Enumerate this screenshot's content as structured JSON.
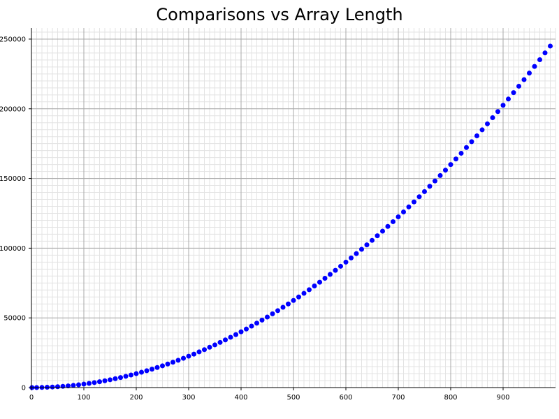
{
  "chart_data": {
    "type": "scatter",
    "title": "Comparisons vs Array Length",
    "xlabel": "",
    "ylabel": "",
    "xlim": [
      0,
      1000
    ],
    "ylim": [
      0,
      258000
    ],
    "x_ticks": [
      0,
      100,
      200,
      300,
      400,
      500,
      600,
      700,
      800,
      900
    ],
    "y_ticks": [
      0,
      50000,
      100000,
      150000,
      200000,
      250000
    ],
    "x_minor_step": 10,
    "y_minor_step": 5000,
    "grid": true,
    "marker_color": "#0000ff",
    "series": [
      {
        "x": [
          1,
          10,
          20,
          30,
          40,
          50,
          60,
          70,
          80,
          90,
          100,
          110,
          120,
          130,
          140,
          150,
          160,
          170,
          180,
          190,
          200,
          210,
          220,
          230,
          240,
          250,
          260,
          270,
          280,
          290,
          300,
          310,
          320,
          330,
          340,
          350,
          360,
          370,
          380,
          390,
          400,
          410,
          420,
          430,
          440,
          450,
          460,
          470,
          480,
          490,
          500,
          510,
          520,
          530,
          540,
          550,
          560,
          570,
          580,
          590,
          600,
          610,
          620,
          630,
          640,
          650,
          660,
          670,
          680,
          690,
          700,
          710,
          720,
          730,
          740,
          750,
          760,
          770,
          780,
          790,
          800,
          810,
          820,
          830,
          840,
          850,
          860,
          870,
          880,
          890,
          900,
          910,
          920,
          930,
          940,
          950,
          960,
          970,
          980,
          990
        ],
        "y": [
          0,
          30,
          100,
          230,
          400,
          630,
          900,
          1200,
          1600,
          2000,
          2500,
          3000,
          3600,
          4200,
          4900,
          5600,
          6400,
          7200,
          8100,
          9000,
          10000,
          11000,
          12100,
          13200,
          14400,
          15600,
          16900,
          18200,
          19600,
          21000,
          22500,
          24000,
          25600,
          27200,
          28900,
          30600,
          32400,
          34200,
          36100,
          38000,
          40000,
          42000,
          44100,
          46200,
          48400,
          50600,
          52900,
          55200,
          57600,
          60000,
          62500,
          65000,
          67600,
          70200,
          72900,
          75600,
          78400,
          81200,
          84100,
          87000,
          90000,
          93000,
          96100,
          99200,
          102400,
          105600,
          108900,
          112200,
          115600,
          119000,
          122500,
          126000,
          129600,
          133200,
          136900,
          140600,
          144400,
          148200,
          152100,
          156000,
          160000,
          164000,
          168100,
          172200,
          176400,
          180600,
          184900,
          189200,
          193600,
          198000,
          202500,
          207000,
          211600,
          216200,
          220900,
          225600,
          230400,
          235200,
          240100,
          245000
        ]
      }
    ]
  }
}
